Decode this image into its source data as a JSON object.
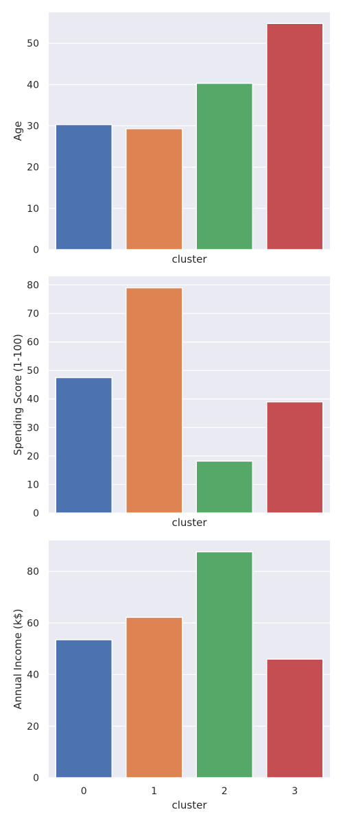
{
  "palette": [
    "#4c72b0",
    "#dd8452",
    "#55a868",
    "#c44e52"
  ],
  "chart_data": [
    {
      "type": "bar",
      "categories": [
        "0",
        "1",
        "2",
        "3"
      ],
      "values": [
        30.3,
        29.3,
        40.3,
        54.8
      ],
      "title": "",
      "xlabel": "cluster",
      "ylabel": "Age",
      "ylim": [
        0,
        57.5
      ],
      "yticks": [
        0,
        10,
        20,
        30,
        40,
        50
      ],
      "show_xticklabels": false,
      "grid": true
    },
    {
      "type": "bar",
      "categories": [
        "0",
        "1",
        "2",
        "3"
      ],
      "values": [
        47.5,
        79.0,
        18.2,
        39.0
      ],
      "title": "",
      "xlabel": "cluster",
      "ylabel": "Spending Score (1-100)",
      "ylim": [
        0,
        83
      ],
      "yticks": [
        0,
        10,
        20,
        30,
        40,
        50,
        60,
        70,
        80
      ],
      "show_xticklabels": false,
      "grid": true
    },
    {
      "type": "bar",
      "categories": [
        "0",
        "1",
        "2",
        "3"
      ],
      "values": [
        53.5,
        62.2,
        87.6,
        46.0
      ],
      "title": "",
      "xlabel": "cluster",
      "ylabel": "Annual Income (k$)",
      "ylim": [
        0,
        92
      ],
      "yticks": [
        0,
        20,
        40,
        60,
        80
      ],
      "show_xticklabels": true,
      "grid": true
    }
  ]
}
